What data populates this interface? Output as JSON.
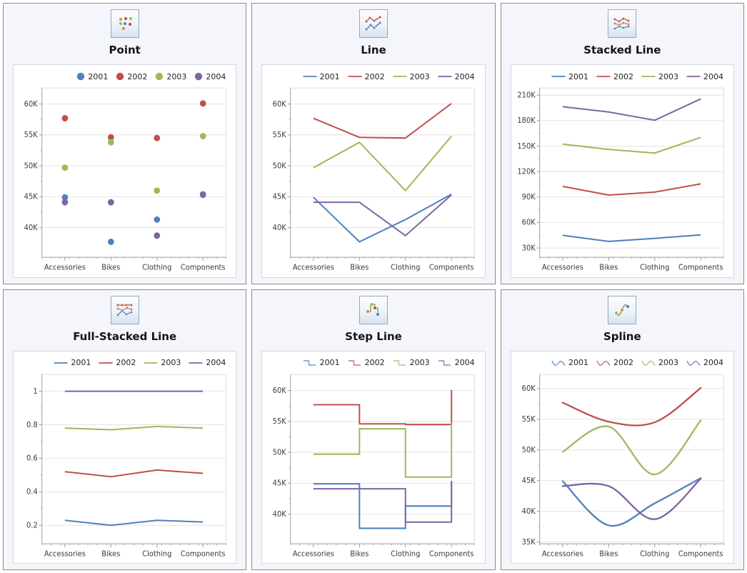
{
  "page": {
    "background": "#ffffff"
  },
  "palette": {
    "s2001": "#4F81BD",
    "s2002": "#C0504D",
    "s2003": "#9BBB59",
    "s2004": "#8064A2"
  },
  "chart_data": [
    {
      "title": "Point",
      "type": "point",
      "icon": "point-chart-icon",
      "categories": [
        "Accessories",
        "Bikes",
        "Clothing",
        "Components"
      ],
      "xlabel": "",
      "ylabel": "",
      "legend_position": "top-right",
      "grid": "horizontal",
      "ylim": [
        35.2,
        62.6
      ],
      "y_ticks": [
        {
          "value": 40,
          "label": "40K"
        },
        {
          "value": 45,
          "label": "45K"
        },
        {
          "value": 50,
          "label": "50K"
        },
        {
          "value": 55,
          "label": "55K"
        },
        {
          "value": 60,
          "label": "60K"
        }
      ],
      "unit": "thousands",
      "series": [
        {
          "name": "2001",
          "color": "#4F81BD",
          "values": [
            44.9,
            37.7,
            41.3,
            45.4
          ]
        },
        {
          "name": "2002",
          "color": "#C0504D",
          "values": [
            57.7,
            54.6,
            54.5,
            60.1
          ]
        },
        {
          "name": "2003",
          "color": "#9BBB59",
          "values": [
            49.7,
            53.8,
            46.0,
            54.8
          ]
        },
        {
          "name": "2004",
          "color": "#8064A2",
          "values": [
            44.1,
            44.1,
            38.7,
            45.3
          ]
        }
      ]
    },
    {
      "title": "Line",
      "type": "line",
      "icon": "line-chart-icon",
      "categories": [
        "Accessories",
        "Bikes",
        "Clothing",
        "Components"
      ],
      "xlabel": "",
      "ylabel": "",
      "legend_position": "top-right",
      "grid": "horizontal",
      "ylim": [
        35.2,
        62.6
      ],
      "y_ticks": [
        {
          "value": 40,
          "label": "40K"
        },
        {
          "value": 45,
          "label": "45K"
        },
        {
          "value": 50,
          "label": "50K"
        },
        {
          "value": 55,
          "label": "55K"
        },
        {
          "value": 60,
          "label": "60K"
        }
      ],
      "unit": "thousands",
      "series": [
        {
          "name": "2001",
          "color": "#4F81BD",
          "values": [
            44.9,
            37.7,
            41.3,
            45.4
          ]
        },
        {
          "name": "2002",
          "color": "#C0504D",
          "values": [
            57.7,
            54.6,
            54.5,
            60.1
          ]
        },
        {
          "name": "2003",
          "color": "#9BBB59",
          "values": [
            49.7,
            53.8,
            46.0,
            54.8
          ]
        },
        {
          "name": "2004",
          "color": "#8064A2",
          "values": [
            44.1,
            44.1,
            38.7,
            45.3
          ]
        }
      ]
    },
    {
      "title": "Stacked Line",
      "type": "stacked-line",
      "icon": "stacked-line-chart-icon",
      "categories": [
        "Accessories",
        "Bikes",
        "Clothing",
        "Components"
      ],
      "xlabel": "",
      "ylabel": "",
      "legend_position": "top-right",
      "grid": "horizontal",
      "note": "values are cumulative stacked totals as plotted",
      "ylim": [
        19,
        218.5
      ],
      "y_ticks": [
        {
          "value": 30,
          "label": "30K"
        },
        {
          "value": 60,
          "label": "60K"
        },
        {
          "value": 90,
          "label": "90K"
        },
        {
          "value": 120,
          "label": "120K"
        },
        {
          "value": 150,
          "label": "150K"
        },
        {
          "value": 180,
          "label": "180K"
        },
        {
          "value": 210,
          "label": "210K"
        }
      ],
      "unit": "thousands",
      "series": [
        {
          "name": "2001",
          "color": "#4F81BD",
          "values": [
            44.9,
            37.7,
            41.3,
            45.4
          ]
        },
        {
          "name": "2002",
          "color": "#C0504D",
          "values": [
            102.6,
            92.3,
            95.8,
            105.5
          ]
        },
        {
          "name": "2003",
          "color": "#9BBB59",
          "values": [
            152.3,
            146.1,
            141.8,
            160.3
          ]
        },
        {
          "name": "2004",
          "color": "#8064A2",
          "values": [
            196.4,
            190.2,
            180.5,
            205.6
          ]
        }
      ]
    },
    {
      "title": "Full-Stacked Line",
      "type": "full-stacked-line",
      "icon": "full-stacked-line-chart-icon",
      "categories": [
        "Accessories",
        "Bikes",
        "Clothing",
        "Components"
      ],
      "xlabel": "",
      "ylabel": "",
      "legend_position": "top-right",
      "grid": "horizontal",
      "note": "values are cumulative fractions of total as plotted",
      "ylim": [
        0.09,
        1.1
      ],
      "y_ticks": [
        {
          "value": 0.2,
          "label": "0.2"
        },
        {
          "value": 0.4,
          "label": "0.4"
        },
        {
          "value": 0.6,
          "label": "0.6"
        },
        {
          "value": 0.8,
          "label": "0.8"
        },
        {
          "value": 1,
          "label": "1"
        }
      ],
      "unit": "fraction",
      "series": [
        {
          "name": "2001",
          "color": "#4F81BD",
          "values": [
            0.23,
            0.2,
            0.23,
            0.22
          ]
        },
        {
          "name": "2002",
          "color": "#C0504D",
          "values": [
            0.52,
            0.49,
            0.53,
            0.51
          ]
        },
        {
          "name": "2003",
          "color": "#9BBB59",
          "values": [
            0.78,
            0.77,
            0.79,
            0.78
          ]
        },
        {
          "name": "2004",
          "color": "#8064A2",
          "values": [
            1,
            1,
            1,
            1
          ]
        }
      ]
    },
    {
      "title": "Step Line",
      "type": "step-line",
      "icon": "step-line-chart-icon",
      "categories": [
        "Accessories",
        "Bikes",
        "Clothing",
        "Components"
      ],
      "xlabel": "",
      "ylabel": "",
      "legend_position": "top-right",
      "grid": "horizontal",
      "ylim": [
        35.2,
        62.6
      ],
      "y_ticks": [
        {
          "value": 40,
          "label": "40K"
        },
        {
          "value": 45,
          "label": "45K"
        },
        {
          "value": 50,
          "label": "50K"
        },
        {
          "value": 55,
          "label": "55K"
        },
        {
          "value": 60,
          "label": "60K"
        }
      ],
      "unit": "thousands",
      "series": [
        {
          "name": "2001",
          "color": "#4F81BD",
          "values": [
            44.9,
            37.7,
            41.3,
            45.4
          ]
        },
        {
          "name": "2002",
          "color": "#C0504D",
          "values": [
            57.7,
            54.6,
            54.5,
            60.1
          ]
        },
        {
          "name": "2003",
          "color": "#9BBB59",
          "values": [
            49.7,
            53.8,
            46.0,
            54.8
          ]
        },
        {
          "name": "2004",
          "color": "#8064A2",
          "values": [
            44.1,
            44.1,
            38.7,
            45.3
          ]
        }
      ]
    },
    {
      "title": "Spline",
      "type": "spline",
      "icon": "spline-chart-icon",
      "categories": [
        "Accessories",
        "Bikes",
        "Clothing",
        "Components"
      ],
      "xlabel": "",
      "ylabel": "",
      "legend_position": "top-right",
      "grid": "horizontal",
      "ylim": [
        34.7,
        62.3
      ],
      "y_ticks": [
        {
          "value": 35,
          "label": "35K"
        },
        {
          "value": 40,
          "label": "40K"
        },
        {
          "value": 45,
          "label": "45K"
        },
        {
          "value": 50,
          "label": "50K"
        },
        {
          "value": 55,
          "label": "55K"
        },
        {
          "value": 60,
          "label": "60K"
        }
      ],
      "unit": "thousands",
      "series": [
        {
          "name": "2001",
          "color": "#4F81BD",
          "values": [
            44.9,
            37.7,
            41.3,
            45.4
          ]
        },
        {
          "name": "2002",
          "color": "#C0504D",
          "values": [
            57.7,
            54.6,
            54.5,
            60.1
          ]
        },
        {
          "name": "2003",
          "color": "#9BBB59",
          "values": [
            49.7,
            53.8,
            46.0,
            54.8
          ]
        },
        {
          "name": "2004",
          "color": "#8064A2",
          "values": [
            44.1,
            44.1,
            38.7,
            45.3
          ]
        }
      ]
    }
  ]
}
